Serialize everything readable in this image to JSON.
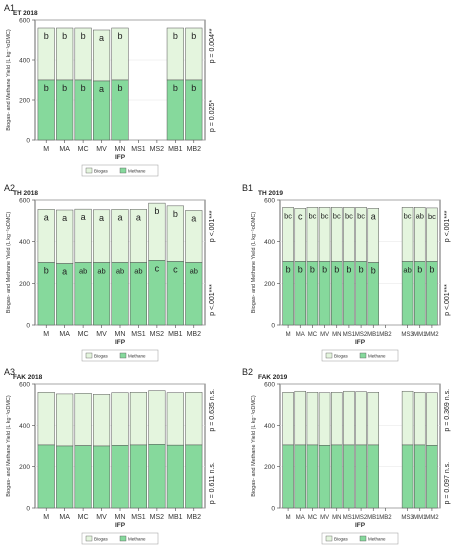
{
  "figure": {
    "y_axis_label": "Biogas- and Methane Yield (L kg⁻¹oDMC)",
    "x_axis_label": "IFP",
    "legend": {
      "biogas": "Biogas",
      "methane": "Methane"
    },
    "colors": {
      "biogas": "#e4f5de",
      "methane": "#86d99c",
      "outline": "#555555",
      "panel_border": "#444444",
      "gridline": "#e6e6e6"
    }
  },
  "chart_data": [
    {
      "id": "A1",
      "type": "bar",
      "panel_label": "A1",
      "title": "ET 2018",
      "categories": [
        "M",
        "MA",
        "MC",
        "MV",
        "MN",
        "MS1",
        "MS2",
        "MB1",
        "MB2"
      ],
      "series": [
        {
          "name": "Biogas",
          "values": [
            560,
            560,
            560,
            550,
            560,
            null,
            null,
            560,
            560
          ]
        },
        {
          "name": "Methane",
          "values": [
            300,
            300,
            300,
            295,
            300,
            null,
            null,
            300,
            300
          ]
        }
      ],
      "ylim": [
        0,
        600
      ],
      "yticks": [
        0,
        200,
        400,
        600
      ],
      "biogas_letters": [
        "b",
        "b",
        "b",
        "a",
        "b",
        "",
        "",
        "b",
        "b"
      ],
      "methane_letters": [
        "b",
        "b",
        "b",
        "a",
        "b",
        "",
        "",
        "b",
        "b"
      ],
      "pvalue_biogas": "p = 0.004**",
      "pvalue_methane": "p = 0.025*",
      "xlabel": "IFP"
    },
    {
      "id": "A2",
      "type": "bar",
      "panel_label": "A2",
      "title": "TH 2018",
      "categories": [
        "M",
        "MA",
        "MC",
        "MV",
        "MN",
        "MS1",
        "MS2",
        "MB1",
        "MB2"
      ],
      "series": [
        {
          "name": "Biogas",
          "values": [
            555,
            552,
            556,
            553,
            555,
            555,
            585,
            572,
            550
          ]
        },
        {
          "name": "Methane",
          "values": [
            300,
            295,
            300,
            300,
            300,
            300,
            310,
            305,
            300
          ]
        }
      ],
      "ylim": [
        0,
        600
      ],
      "yticks": [
        0,
        200,
        400,
        600
      ],
      "biogas_letters": [
        "a",
        "a",
        "a",
        "a",
        "a",
        "a",
        "b",
        "b",
        "a"
      ],
      "methane_letters": [
        "b",
        "a",
        "ab",
        "ab",
        "ab",
        "ab",
        "c",
        "c",
        "ab"
      ],
      "pvalue_biogas": "p <.001***",
      "pvalue_methane": "p <.001***",
      "xlabel": "IFP"
    },
    {
      "id": "B1",
      "type": "bar",
      "panel_label": "B1",
      "title": "TH 2019",
      "categories": [
        "M",
        "MA",
        "MC",
        "MV",
        "MN",
        "MS1",
        "MS2",
        "MB1",
        "MB2",
        "MS3",
        "MM1",
        "MM2"
      ],
      "series": [
        {
          "name": "Biogas",
          "values": [
            565,
            560,
            565,
            565,
            565,
            565,
            565,
            560,
            null,
            565,
            565,
            562
          ]
        },
        {
          "name": "Methane",
          "values": [
            305,
            305,
            305,
            305,
            305,
            305,
            305,
            300,
            null,
            305,
            305,
            305
          ]
        }
      ],
      "ylim": [
        0,
        600
      ],
      "yticks": [
        0,
        200,
        400,
        600
      ],
      "biogas_letters": [
        "bc",
        "c",
        "bc",
        "bc",
        "bc",
        "bc",
        "bc",
        "a",
        "",
        "bc",
        "ab",
        "bc"
      ],
      "methane_letters": [
        "b",
        "b",
        "b",
        "b",
        "b",
        "b",
        "b",
        "b",
        "",
        "ab",
        "b",
        "b"
      ],
      "pvalue_biogas": "p <.001***",
      "pvalue_methane": "p <.001***",
      "xlabel": "IFP"
    },
    {
      "id": "A3",
      "type": "bar",
      "panel_label": "A3",
      "title": "FAK 2018",
      "categories": [
        "M",
        "MA",
        "MC",
        "MV",
        "MN",
        "MS1",
        "MS2",
        "MB1",
        "MB2"
      ],
      "series": [
        {
          "name": "Biogas",
          "values": [
            560,
            552,
            555,
            550,
            558,
            560,
            568,
            558,
            560
          ]
        },
        {
          "name": "Methane",
          "values": [
            305,
            300,
            302,
            300,
            303,
            305,
            308,
            304,
            305
          ]
        }
      ],
      "ylim": [
        0,
        600
      ],
      "yticks": [
        0,
        200,
        400,
        600
      ],
      "biogas_letters": [],
      "methane_letters": [],
      "pvalue_biogas": "p = 0.635 n.s.",
      "pvalue_methane": "p = 0.611 n.s.",
      "xlabel": "IFP"
    },
    {
      "id": "B2",
      "type": "bar",
      "panel_label": "B2",
      "title": "FAK 2019",
      "categories": [
        "M",
        "MA",
        "MC",
        "MV",
        "MN",
        "MS1",
        "MS2",
        "MB1",
        "MB2",
        "MS3",
        "MM1",
        "MM2"
      ],
      "series": [
        {
          "name": "Biogas",
          "values": [
            560,
            565,
            560,
            558,
            560,
            565,
            563,
            560,
            null,
            565,
            560,
            558
          ]
        },
        {
          "name": "Methane",
          "values": [
            305,
            305,
            305,
            303,
            305,
            305,
            305,
            305,
            null,
            305,
            305,
            303
          ]
        }
      ],
      "ylim": [
        0,
        600
      ],
      "yticks": [
        0,
        200,
        400,
        600
      ],
      "biogas_letters": [],
      "methane_letters": [],
      "pvalue_biogas": "p = 0.369 n.s.",
      "pvalue_methane": "p = 0.097 n.s.",
      "xlabel": "IFP"
    }
  ]
}
